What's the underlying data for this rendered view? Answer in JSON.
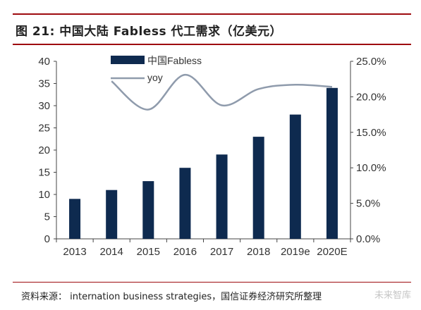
{
  "header": {
    "title": "图 21:  中国大陆 Fabless 代工需求（亿美元）"
  },
  "footer": {
    "source": "资料来源：  internation business strategies，国信证券经济研究所整理",
    "watermark": "未来智库"
  },
  "colors": {
    "bar": "#0e2a4f",
    "line": "#8f9bac",
    "rule": "#9e0b0f"
  },
  "chart_data": {
    "type": "bar",
    "categories": [
      "2013",
      "2014",
      "2015",
      "2016",
      "2017",
      "2018",
      "2019e",
      "2020E"
    ],
    "series": [
      {
        "name": "中国Fabless",
        "type": "bar",
        "axis": "left",
        "values": [
          9,
          11,
          13,
          16,
          19,
          23,
          28,
          34
        ]
      },
      {
        "name": "yoy",
        "type": "line",
        "axis": "right",
        "smooth": true,
        "values": [
          null,
          22.2,
          18.2,
          23.1,
          18.8,
          21.1,
          21.7,
          21.4
        ]
      }
    ],
    "yleft": {
      "min": 0,
      "max": 40,
      "ticks": [
        "0",
        "5",
        "10",
        "15",
        "20",
        "25",
        "30",
        "35",
        "40"
      ]
    },
    "yright": {
      "min": 0,
      "max": 25,
      "ticks": [
        "0.0%",
        "5.0%",
        "10.0%",
        "15.0%",
        "20.0%",
        "25.0%"
      ]
    },
    "legend": "top-left",
    "grid": false
  }
}
